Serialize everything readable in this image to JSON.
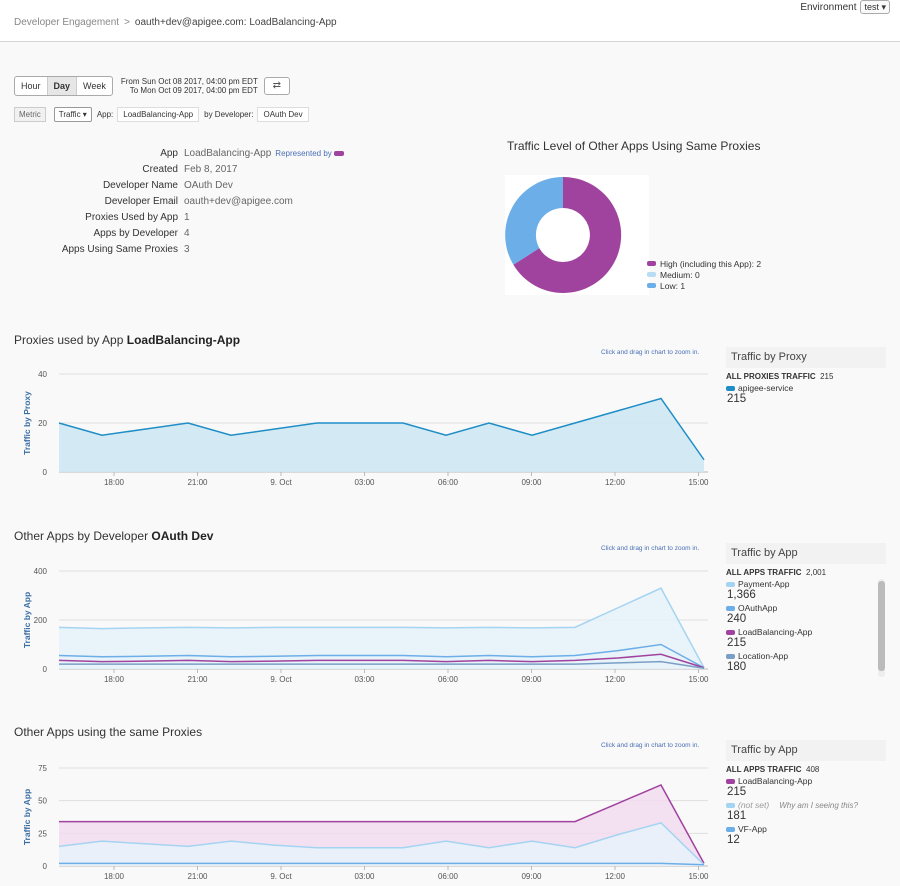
{
  "header": {
    "breadcrumb_root": "Developer Engagement",
    "breadcrumb_sep": ">",
    "breadcrumb_current": "oauth+dev@apigee.com: LoadBalancing-App",
    "env_label": "Environment",
    "env_value": "test ▾"
  },
  "timebar": {
    "buttons": [
      "Hour",
      "Day",
      "Week"
    ],
    "range_from": "From  Sun Oct 08 2017, 04:00 pm EDT",
    "range_to": "To Mon Oct 09 2017, 04:00 pm EDT",
    "swap_icon": "⇄"
  },
  "filters": {
    "metric_label": "Metric",
    "metric_value": "Traffic ▾",
    "app_label": "App:",
    "app_value": "LoadBalancing-App",
    "dev_label": "by Developer:",
    "dev_value": "OAuth Dev"
  },
  "info": {
    "rows": [
      {
        "k": "App",
        "v": "LoadBalancing-App"
      },
      {
        "k": "Created",
        "v": "Feb 8, 2017"
      },
      {
        "k": "Developer Name",
        "v": "OAuth Dev"
      },
      {
        "k": "Developer Email",
        "v": "oauth+dev@apigee.com"
      },
      {
        "k": "Proxies Used by App",
        "v": "1"
      },
      {
        "k": "Apps by Developer",
        "v": "4"
      },
      {
        "k": "Apps Using Same Proxies",
        "v": "3"
      }
    ],
    "represented_by": "Represented by",
    "app_color": "#a0439e"
  },
  "donut": {
    "title": "Traffic Level of Other Apps Using Same Proxies",
    "legend": [
      {
        "label": "High (including this App): 2",
        "color": "#a0439e"
      },
      {
        "label": "Medium: 0",
        "color": "#b8dcf3"
      },
      {
        "label": "Low: 1",
        "color": "#6caee8"
      }
    ]
  },
  "sections": [
    {
      "prefix": "Proxies used by App ",
      "bold": "LoadBalancing-App",
      "hint": "Click and drag in chart to zoom in."
    },
    {
      "prefix": "Other Apps by Developer ",
      "bold": "OAuth Dev",
      "hint": "Click and drag in chart to zoom in."
    },
    {
      "prefix": "Other Apps using the same Proxies",
      "bold": "",
      "hint": "Click and drag in chart to zoom in."
    }
  ],
  "chart_data": [
    {
      "type": "area",
      "ylabel": "Traffic by Proxy",
      "ylim": [
        0,
        40
      ],
      "yticks": [
        0,
        20,
        40
      ],
      "xticks": [
        "18:00",
        "21:00",
        "9. Oct",
        "03:00",
        "06:00",
        "09:00",
        "12:00",
        "15:00"
      ],
      "series": [
        {
          "name": "apigee-service",
          "color": "#1f8dc6",
          "fill": "#cde7f3",
          "values": [
            20,
            15,
            17.5,
            20,
            15,
            17.5,
            20,
            20,
            20,
            15,
            20,
            15,
            20,
            25,
            30,
            5
          ]
        }
      ]
    },
    {
      "type": "area",
      "ylabel": "Traffic by App",
      "ylim": [
        0,
        400
      ],
      "yticks": [
        0,
        200,
        400
      ],
      "xticks": [
        "18:00",
        "21:00",
        "9. Oct",
        "03:00",
        "06:00",
        "09:00",
        "12:00",
        "15:00"
      ],
      "series": [
        {
          "name": "Payment-App",
          "color": "#a5d4f2",
          "fill": "#e6f2fa",
          "values": [
            170,
            165,
            168,
            170,
            168,
            170,
            170,
            170,
            170,
            168,
            170,
            168,
            170,
            250,
            330,
            5
          ]
        },
        {
          "name": "OAuthApp",
          "color": "#6caee8",
          "fill": "none",
          "values": [
            55,
            50,
            52,
            55,
            50,
            52,
            55,
            55,
            55,
            50,
            55,
            50,
            55,
            75,
            100,
            5
          ]
        },
        {
          "name": "LoadBalancing-App",
          "color": "#a0439e",
          "fill": "none",
          "values": [
            35,
            30,
            32,
            35,
            30,
            32,
            35,
            35,
            35,
            30,
            35,
            30,
            35,
            45,
            60,
            5
          ]
        },
        {
          "name": "Location-App",
          "color": "#7a9fc5",
          "fill": "none",
          "values": [
            20,
            20,
            20,
            20,
            20,
            20,
            20,
            20,
            20,
            20,
            20,
            20,
            20,
            25,
            30,
            3
          ]
        }
      ]
    },
    {
      "type": "area",
      "ylabel": "Traffic by App",
      "ylim": [
        0,
        75
      ],
      "yticks": [
        0,
        25,
        50,
        75
      ],
      "xticks": [
        "18:00",
        "21:00",
        "9. Oct",
        "03:00",
        "06:00",
        "09:00",
        "12:00",
        "15:00"
      ],
      "series": [
        {
          "name": "LoadBalancing-App",
          "color": "#a0439e",
          "fill": "#f2dcef",
          "values": [
            34,
            34,
            34,
            34,
            34,
            34,
            34,
            34,
            34,
            34,
            34,
            34,
            34,
            48,
            62,
            2
          ]
        },
        {
          "name": "(not set)",
          "color": "#a5d4f2",
          "fill": "#e6f2fa",
          "values": [
            15,
            19,
            17,
            15,
            19,
            16,
            14,
            14,
            14,
            19,
            14,
            19,
            14,
            24,
            33,
            1
          ]
        },
        {
          "name": "VF-App",
          "color": "#6caee8",
          "fill": "none",
          "values": [
            2,
            2,
            2,
            2,
            2,
            2,
            2,
            2,
            2,
            2,
            2,
            2,
            2,
            2,
            2,
            1
          ]
        }
      ]
    }
  ],
  "panels": [
    {
      "title": "Traffic by Proxy",
      "total_label": "ALL PROXIES TRAFFIC",
      "total_value": "215",
      "items": [
        {
          "name": "apigee-service",
          "value": "215",
          "color": "#1f8dc6"
        }
      ]
    },
    {
      "title": "Traffic by App",
      "total_label": "ALL APPS TRAFFIC",
      "total_value": "2,001",
      "items": [
        {
          "name": "Payment-App",
          "value": "1,366",
          "color": "#a5d4f2"
        },
        {
          "name": "OAuthApp",
          "value": "240",
          "color": "#6caee8"
        },
        {
          "name": "LoadBalancing-App",
          "value": "215",
          "color": "#a0439e"
        },
        {
          "name": "Location-App",
          "value": "180",
          "color": "#7a9fc5"
        }
      ]
    },
    {
      "title": "Traffic by App",
      "total_label": "ALL APPS TRAFFIC",
      "total_value": "408",
      "items": [
        {
          "name": "LoadBalancing-App",
          "value": "215",
          "color": "#a0439e"
        },
        {
          "name": "(not set)",
          "value": "181",
          "color": "#a5d4f2",
          "note": "Why am I seeing this?"
        },
        {
          "name": "VF-App",
          "value": "12",
          "color": "#6caee8"
        }
      ]
    }
  ]
}
